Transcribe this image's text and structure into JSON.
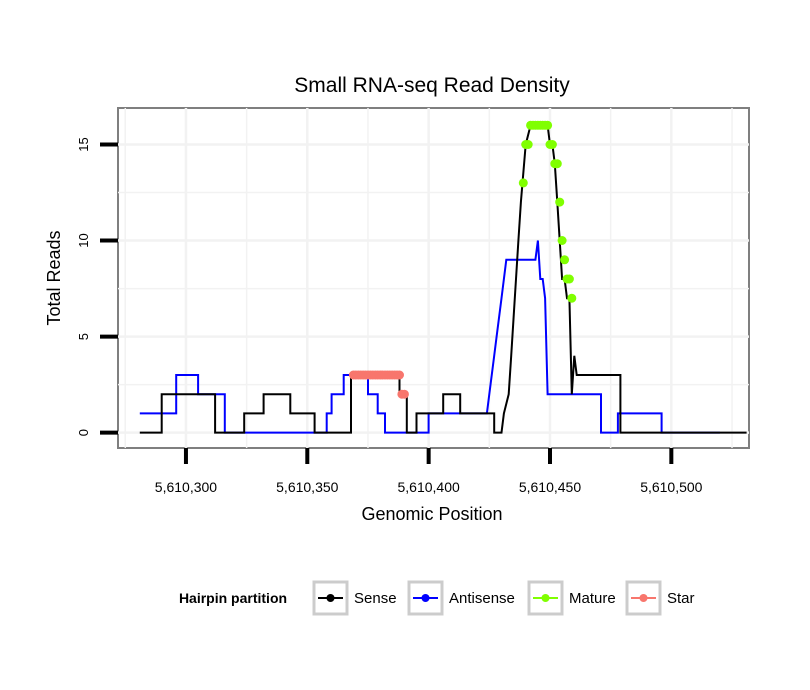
{
  "chart_data": {
    "type": "line",
    "title": "Small RNA-seq Read Density",
    "xlabel": "Genomic Position",
    "ylabel": "Total Reads",
    "xlim": [
      5610272,
      5610532
    ],
    "ylim": [
      -0.8,
      16.9
    ],
    "x_ticks": [
      5610300,
      5610350,
      5610400,
      5610450,
      5610500
    ],
    "x_tick_labels": [
      "5,610,300",
      "5,610,350",
      "5,610,400",
      "5,610,450",
      "5,610,500"
    ],
    "y_ticks": [
      0,
      5,
      10,
      15
    ],
    "y_tick_labels": [
      "0",
      "5",
      "10",
      "15"
    ],
    "grid": true,
    "legend": {
      "title": "Hairpin partition",
      "position": "bottom",
      "entries": [
        "Sense",
        "Antisense",
        "Mature",
        "Star"
      ]
    },
    "series": [
      {
        "name": "Sense",
        "color": "#000000",
        "kind": "step",
        "points": [
          [
            5610281,
            0
          ],
          [
            5610290,
            0
          ],
          [
            5610290,
            2
          ],
          [
            5610293,
            2
          ],
          [
            5610307,
            2
          ],
          [
            5610307,
            2
          ],
          [
            5610312,
            2
          ],
          [
            5610312,
            0
          ],
          [
            5610315,
            0
          ],
          [
            5610324,
            0
          ],
          [
            5610324,
            1
          ],
          [
            5610332,
            1
          ],
          [
            5610332,
            2
          ],
          [
            5610343,
            2
          ],
          [
            5610343,
            1
          ],
          [
            5610353,
            1
          ],
          [
            5610353,
            0
          ],
          [
            5610362,
            0
          ],
          [
            5610368,
            0
          ],
          [
            5610368,
            3
          ],
          [
            5610388,
            3
          ],
          [
            5610388,
            2
          ],
          [
            5610391,
            2
          ],
          [
            5610391,
            0
          ],
          [
            5610395,
            0
          ],
          [
            5610395,
            1
          ],
          [
            5610406,
            1
          ],
          [
            5610406,
            2
          ],
          [
            5610413,
            2
          ],
          [
            5610413,
            1
          ],
          [
            5610427,
            1
          ],
          [
            5610427,
            0
          ],
          [
            5610430,
            0
          ],
          [
            5610431,
            1
          ],
          [
            5610433,
            2
          ],
          [
            5610434,
            4
          ],
          [
            5610435,
            6
          ],
          [
            5610436,
            8
          ],
          [
            5610437,
            10
          ],
          [
            5610438,
            12
          ],
          [
            5610440,
            15
          ],
          [
            5610442,
            16
          ],
          [
            5610449,
            16
          ],
          [
            5610450,
            15
          ],
          [
            5610451,
            15
          ],
          [
            5610452,
            14
          ],
          [
            5610453,
            12
          ],
          [
            5610454,
            10
          ],
          [
            5610455,
            8
          ],
          [
            5610456,
            8
          ],
          [
            5610457,
            7
          ],
          [
            5610458,
            7
          ],
          [
            5610459,
            2
          ],
          [
            5610460,
            4
          ],
          [
            5610461,
            3
          ],
          [
            5610470,
            3
          ],
          [
            5610479,
            3
          ],
          [
            5610479,
            0
          ],
          [
            5610510,
            0
          ],
          [
            5610531,
            0
          ]
        ]
      },
      {
        "name": "Antisense",
        "color": "#0000ff",
        "kind": "step",
        "points": [
          [
            5610281,
            1
          ],
          [
            5610296,
            1
          ],
          [
            5610296,
            3
          ],
          [
            5610305,
            3
          ],
          [
            5610305,
            2
          ],
          [
            5610316,
            2
          ],
          [
            5610316,
            0
          ],
          [
            5610343,
            0
          ],
          [
            5610358,
            0
          ],
          [
            5610358,
            1
          ],
          [
            5610360,
            1
          ],
          [
            5610360,
            2
          ],
          [
            5610365,
            2
          ],
          [
            5610365,
            3
          ],
          [
            5610375,
            3
          ],
          [
            5610375,
            2
          ],
          [
            5610379,
            2
          ],
          [
            5610379,
            1
          ],
          [
            5610382,
            1
          ],
          [
            5610382,
            0
          ],
          [
            5610391,
            0
          ],
          [
            5610391,
            0
          ],
          [
            5610400,
            0
          ],
          [
            5610400,
            1
          ],
          [
            5610424,
            1
          ],
          [
            5610425,
            2
          ],
          [
            5610427,
            4
          ],
          [
            5610428,
            5
          ],
          [
            5610430,
            7
          ],
          [
            5610431,
            8
          ],
          [
            5610432,
            9
          ],
          [
            5610444,
            9
          ],
          [
            5610445,
            10
          ],
          [
            5610446,
            8
          ],
          [
            5610447,
            8
          ],
          [
            5610448,
            7
          ],
          [
            5610449,
            2
          ],
          [
            5610458,
            2
          ],
          [
            5610471,
            2
          ],
          [
            5610471,
            0
          ],
          [
            5610478,
            0
          ],
          [
            5610478,
            1
          ],
          [
            5610496,
            1
          ],
          [
            5610496,
            0
          ],
          [
            5610520,
            0
          ]
        ]
      },
      {
        "name": "Mature",
        "color": "#80ff00",
        "kind": "points",
        "points": [
          [
            5610439,
            13
          ],
          [
            5610440,
            15
          ],
          [
            5610441,
            15
          ],
          [
            5610442,
            16
          ],
          [
            5610443,
            16
          ],
          [
            5610444,
            16
          ],
          [
            5610445,
            16
          ],
          [
            5610446,
            16
          ],
          [
            5610447,
            16
          ],
          [
            5610448,
            16
          ],
          [
            5610449,
            16
          ],
          [
            5610450,
            15
          ],
          [
            5610451,
            15
          ],
          [
            5610452,
            14
          ],
          [
            5610453,
            14
          ],
          [
            5610454,
            12
          ],
          [
            5610455,
            10
          ],
          [
            5610456,
            9
          ],
          [
            5610457,
            8
          ],
          [
            5610458,
            8
          ],
          [
            5610459,
            7
          ]
        ]
      },
      {
        "name": "Star",
        "color": "#f8766d",
        "kind": "points",
        "points": [
          [
            5610369,
            3
          ],
          [
            5610370,
            3
          ],
          [
            5610371,
            3
          ],
          [
            5610372,
            3
          ],
          [
            5610373,
            3
          ],
          [
            5610374,
            3
          ],
          [
            5610375,
            3
          ],
          [
            5610376,
            3
          ],
          [
            5610377,
            3
          ],
          [
            5610378,
            3
          ],
          [
            5610379,
            3
          ],
          [
            5610380,
            3
          ],
          [
            5610381,
            3
          ],
          [
            5610382,
            3
          ],
          [
            5610383,
            3
          ],
          [
            5610384,
            3
          ],
          [
            5610385,
            3
          ],
          [
            5610386,
            3
          ],
          [
            5610387,
            3
          ],
          [
            5610388,
            3
          ],
          [
            5610389,
            2
          ],
          [
            5610390,
            2
          ]
        ]
      }
    ]
  }
}
